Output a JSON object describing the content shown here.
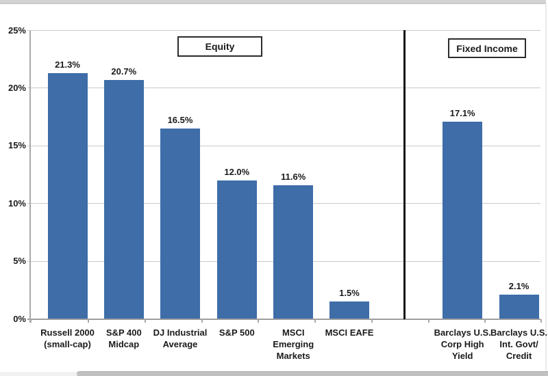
{
  "chart_data": {
    "type": "bar",
    "title": "",
    "xlabel": "",
    "ylabel": "",
    "categories": [
      "Russell 2000 (small-cap)",
      "S&P 400 Midcap",
      "DJ Industrial Average",
      "S&P 500",
      "MSCI Emerging Markets",
      "MSCI EAFE",
      "Barclays U.S. Corp High Yield",
      "Barclays U.S. Int. Govt/Credit"
    ],
    "category_lines": [
      [
        "Russell 2000",
        "(small-cap)"
      ],
      [
        "S&P 400",
        "Midcap"
      ],
      [
        "DJ Industrial",
        "Average"
      ],
      [
        "S&P 500"
      ],
      [
        "MSCI",
        "Emerging",
        "Markets"
      ],
      [
        "MSCI EAFE"
      ],
      [
        "Barclays U.S.",
        "Corp High",
        "Yield"
      ],
      [
        "Barclays U.S.",
        "Int. Govt/",
        "Credit"
      ]
    ],
    "values": [
      21.3,
      20.7,
      16.5,
      12.0,
      11.6,
      1.5,
      17.1,
      2.1
    ],
    "data_labels": [
      "21.3%",
      "20.7%",
      "16.5%",
      "12.0%",
      "11.6%",
      "1.5%",
      "17.1%",
      "2.1%"
    ],
    "group_labels": [
      "Equity",
      "Fixed Income"
    ],
    "groups": [
      {
        "label": "Equity",
        "category_count": 6
      },
      {
        "label": "Fixed Income",
        "category_count": 2
      }
    ],
    "divider_after_category": "MSCI EAFE",
    "y_ticks": [
      {
        "value": 25,
        "label": "25%"
      },
      {
        "value": 20,
        "label": "20%"
      },
      {
        "value": 15,
        "label": "15%"
      },
      {
        "value": 10,
        "label": "10%"
      },
      {
        "value": 5,
        "label": "5%"
      },
      {
        "value": 0,
        "label": "0%"
      }
    ],
    "ylim": [
      0,
      25
    ],
    "grid": true,
    "legend_position": "none",
    "bar_color": "#3e6da8"
  }
}
